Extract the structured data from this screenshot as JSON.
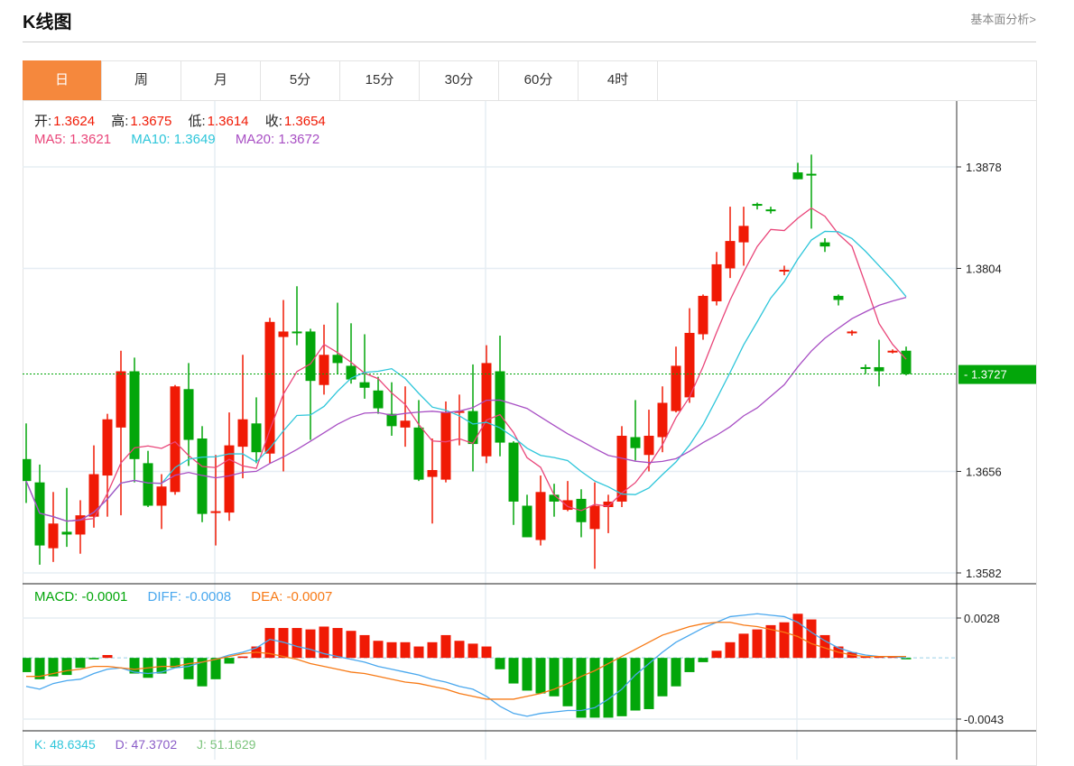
{
  "header": {
    "title": "K线图",
    "more_link": "基本面分析>"
  },
  "tabs": [
    {
      "label": "日",
      "active": true
    },
    {
      "label": "周"
    },
    {
      "label": "月"
    },
    {
      "label": "5分"
    },
    {
      "label": "15分"
    },
    {
      "label": "30分"
    },
    {
      "label": "60分"
    },
    {
      "label": "4时"
    }
  ],
  "legend": {
    "open_label": "开:",
    "open": "1.3624",
    "high_label": "高:",
    "high": "1.3675",
    "low_label": "低:",
    "low": "1.3614",
    "close_label": "收:",
    "close": "1.3654",
    "ma5": "MA5: 1.3621",
    "ma10": "MA10: 1.3649",
    "ma20": "MA20: 1.3672",
    "macd": "MACD: -0.0001",
    "diff": "DIFF: -0.0008",
    "dea": "DEA: -0.0007",
    "k": "K: 48.6345",
    "d": "D: 47.3702",
    "j": "J: 51.1629"
  },
  "colors": {
    "up": "#f01a05",
    "down": "#03a60a",
    "ma5": "#e94579",
    "ma10": "#2ec6da",
    "ma20": "#a84fc4",
    "diff": "#4aa8ee",
    "dea": "#f77a16",
    "accent": "#f5883d"
  },
  "chart_data": [
    {
      "type": "candlestick",
      "title": "K线图",
      "price_ticks": [
        "1.3878",
        "1.3804",
        "1.3656",
        "1.3582"
      ],
      "ylim": [
        1.3582,
        1.3878
      ],
      "current_price": "1.3727",
      "candles": [
        [
          1.3665,
          1.3649,
          1.3691,
          1.3633
        ],
        [
          1.3648,
          1.3602,
          1.3661,
          1.3588
        ],
        [
          1.36,
          1.3618,
          1.3641,
          1.359
        ],
        [
          1.3612,
          1.361,
          1.3644,
          1.3601
        ],
        [
          1.361,
          1.3624,
          1.3635,
          1.3596
        ],
        [
          1.3623,
          1.3654,
          1.3675,
          1.3615
        ],
        [
          1.3653,
          1.3694,
          1.3698,
          1.3623
        ],
        [
          1.3688,
          1.3729,
          1.3744,
          1.3624
        ],
        [
          1.3729,
          1.3665,
          1.3739,
          1.3648
        ],
        [
          1.3662,
          1.3631,
          1.3671,
          1.363
        ],
        [
          1.3631,
          1.3645,
          1.3654,
          1.3614
        ],
        [
          1.3641,
          1.3718,
          1.3719,
          1.3639
        ],
        [
          1.3716,
          1.3679,
          1.3735,
          1.366
        ],
        [
          1.368,
          1.3625,
          1.3689,
          1.3619
        ],
        [
          1.3626,
          1.3627,
          1.3668,
          1.3602
        ],
        [
          1.3626,
          1.3675,
          1.3699,
          1.362
        ],
        [
          1.3674,
          1.3694,
          1.3741,
          1.3651
        ],
        [
          1.3691,
          1.367,
          1.371,
          1.3662
        ],
        [
          1.3669,
          1.3765,
          1.3768,
          1.3662
        ],
        [
          1.3754,
          1.3758,
          1.3781,
          1.3656
        ],
        [
          1.3758,
          1.3757,
          1.3791,
          1.3748
        ],
        [
          1.3758,
          1.3722,
          1.376,
          1.3679
        ],
        [
          1.3719,
          1.3741,
          1.3763,
          1.3712
        ],
        [
          1.3741,
          1.3735,
          1.3779,
          1.3727
        ],
        [
          1.3733,
          1.3723,
          1.3764,
          1.372
        ],
        [
          1.3721,
          1.3717,
          1.3756,
          1.3709
        ],
        [
          1.3715,
          1.3702,
          1.3725,
          1.3698
        ],
        [
          1.3698,
          1.3689,
          1.3721,
          1.3682
        ],
        [
          1.3688,
          1.3693,
          1.3718,
          1.3674
        ],
        [
          1.3688,
          1.365,
          1.3708,
          1.3649
        ],
        [
          1.3652,
          1.3657,
          1.368,
          1.3618
        ],
        [
          1.365,
          1.3699,
          1.3707,
          1.3648
        ],
        [
          1.3699,
          1.37,
          1.3712,
          1.3675
        ],
        [
          1.37,
          1.3676,
          1.3734,
          1.3656
        ],
        [
          1.3667,
          1.3735,
          1.3748,
          1.3662
        ],
        [
          1.3729,
          1.3677,
          1.3755,
          1.3667
        ],
        [
          1.3677,
          1.3634,
          1.3678,
          1.3617
        ],
        [
          1.3631,
          1.3608,
          1.3639,
          1.3608
        ],
        [
          1.3606,
          1.3641,
          1.3653,
          1.3602
        ],
        [
          1.3639,
          1.3634,
          1.3647,
          1.3623
        ],
        [
          1.3628,
          1.3635,
          1.3649,
          1.3627
        ],
        [
          1.3636,
          1.3619,
          1.3643,
          1.3608
        ],
        [
          1.3614,
          1.3631,
          1.3648,
          1.3585
        ],
        [
          1.363,
          1.3634,
          1.3639,
          1.3611
        ],
        [
          1.3634,
          1.3682,
          1.3689,
          1.363
        ],
        [
          1.3681,
          1.3673,
          1.3708,
          1.3664
        ],
        [
          1.3668,
          1.3682,
          1.3701,
          1.3656
        ],
        [
          1.3681,
          1.3706,
          1.3718,
          1.367
        ],
        [
          1.37,
          1.3733,
          1.3747,
          1.3699
        ],
        [
          1.371,
          1.3757,
          1.3775,
          1.3706
        ],
        [
          1.3756,
          1.3784,
          1.3785,
          1.3752
        ],
        [
          1.378,
          1.3807,
          1.3816,
          1.3777
        ],
        [
          1.3804,
          1.3824,
          1.3849,
          1.3797
        ],
        [
          1.3823,
          1.3835,
          1.3849,
          1.3806
        ],
        [
          1.3851,
          1.385,
          1.3852,
          1.3847
        ],
        [
          1.3847,
          1.3846,
          1.3849,
          1.3844
        ],
        [
          1.3802,
          1.3803,
          1.3806,
          1.3799
        ],
        [
          1.3874,
          1.3869,
          1.3881,
          1.3869
        ],
        [
          1.3873,
          1.3872,
          1.3887,
          1.3833
        ],
        [
          1.3823,
          1.382,
          1.3826,
          1.3816
        ],
        [
          1.3784,
          1.3781,
          1.3785,
          1.3777
        ],
        [
          1.3757,
          1.3758,
          1.3759,
          1.3755
        ],
        [
          1.3732,
          1.3731,
          1.3734,
          1.3727
        ],
        [
          1.3732,
          1.3729,
          1.3752,
          1.3718
        ],
        [
          1.3743,
          1.3744,
          1.3745,
          1.3742
        ],
        [
          1.3744,
          1.3727,
          1.3747,
          1.3726
        ]
      ],
      "ma_periods": [
        5,
        10,
        20
      ]
    },
    {
      "type": "bar+line",
      "title": "MACD",
      "ticks": [
        "0.0028",
        "-0.0043"
      ],
      "ylim": [
        -0.0043,
        0.0028
      ],
      "macd": [
        -0.001,
        -0.0015,
        -0.0013,
        -0.0012,
        -0.0007,
        -0.0001,
        0.0002,
        0.0,
        -0.0011,
        -0.0014,
        -0.0011,
        -0.0007,
        -0.0015,
        -0.002,
        -0.0015,
        -0.0004,
        0.0001,
        0.0008,
        0.0021,
        0.0021,
        0.0021,
        0.002,
        0.0022,
        0.0021,
        0.0019,
        0.0016,
        0.0012,
        0.0011,
        0.0011,
        0.0008,
        0.0011,
        0.0016,
        0.0012,
        0.001,
        0.0008,
        -0.0008,
        -0.0018,
        -0.0023,
        -0.0025,
        -0.0027,
        -0.0034,
        -0.0042,
        -0.0042,
        -0.0042,
        -0.0041,
        -0.0037,
        -0.0036,
        -0.0027,
        -0.002,
        -0.001,
        -0.0003,
        0.0005,
        0.0011,
        0.0017,
        0.002,
        0.0023,
        0.0025,
        0.0031,
        0.0027,
        0.0016,
        0.0008,
        0.0004,
        0.0001,
        0.0001,
        0.0001,
        -0.0001
      ],
      "diff": [
        -0.002,
        -0.0022,
        -0.0018,
        -0.0016,
        -0.0015,
        -0.0011,
        -0.0008,
        -0.0007,
        -0.001,
        -0.0011,
        -0.001,
        -0.0007,
        -0.0006,
        -0.0003,
        -0.0001,
        0.0002,
        0.0004,
        0.0007,
        0.0013,
        0.0011,
        0.0008,
        0.0006,
        0.0003,
        0.0001,
        -0.0001,
        -0.0003,
        -0.0006,
        -0.0008,
        -0.001,
        -0.0012,
        -0.0015,
        -0.0017,
        -0.002,
        -0.0022,
        -0.0027,
        -0.0034,
        -0.0039,
        -0.0041,
        -0.0039,
        -0.0038,
        -0.0037,
        -0.0037,
        -0.0035,
        -0.0029,
        -0.0022,
        -0.0012,
        -0.0004,
        0.0004,
        0.0011,
        0.0016,
        0.0021,
        0.0025,
        0.0029,
        0.003,
        0.0031,
        0.003,
        0.0029,
        0.0025,
        0.0018,
        0.0012,
        0.0007,
        0.0004,
        0.0002,
        0.0001,
        0.0001,
        0.0
      ],
      "dea": [
        -0.0013,
        -0.0013,
        -0.0011,
        -0.0009,
        -0.0008,
        -0.0006,
        -0.0006,
        -0.0007,
        -0.0008,
        -0.0007,
        -0.0006,
        -0.0006,
        -0.0004,
        -0.0003,
        -0.0001,
        0.0001,
        0.0003,
        0.0004,
        0.0003,
        0.0001,
        -0.0001,
        -0.0004,
        -0.0006,
        -0.0008,
        -0.001,
        -0.0011,
        -0.0013,
        -0.0015,
        -0.0017,
        -0.0018,
        -0.002,
        -0.0022,
        -0.0025,
        -0.0027,
        -0.0029,
        -0.0029,
        -0.0029,
        -0.0027,
        -0.0025,
        -0.0022,
        -0.0018,
        -0.0013,
        -0.0009,
        -0.0004,
        0.0001,
        0.0006,
        0.0011,
        0.0016,
        0.0019,
        0.0022,
        0.0024,
        0.0025,
        0.0025,
        0.0023,
        0.0022,
        0.002,
        0.0018,
        0.0015,
        0.001,
        0.0007,
        0.0004,
        0.0002,
        0.0001,
        0.0001,
        0.0001,
        0.0001
      ]
    }
  ]
}
